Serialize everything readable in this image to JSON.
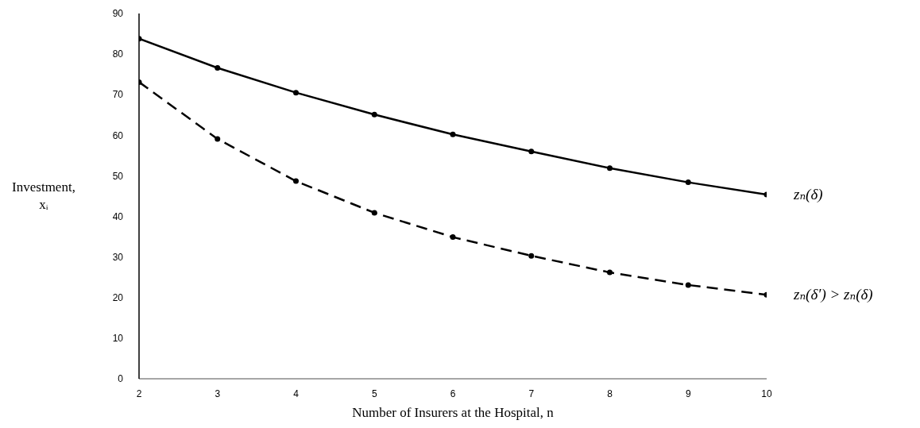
{
  "chart_data": {
    "type": "line",
    "xlabel": "Number of Insurers at the Hospital, n",
    "ylabel": "Investment, xᵢ",
    "x": [
      2,
      3,
      4,
      5,
      6,
      7,
      8,
      9,
      10
    ],
    "series": [
      {
        "name": "zₙ(δ)",
        "color": "#000000",
        "line_style": "solid",
        "values": [
          83.8,
          76.6,
          70.5,
          65.1,
          60.2,
          56.0,
          51.9,
          48.4,
          45.4
        ]
      },
      {
        "name": "zₙ(δ′) > zₙ(δ)",
        "color": "#000000",
        "line_style": "dashed",
        "values": [
          73.1,
          59.1,
          48.7,
          40.9,
          34.9,
          30.3,
          26.2,
          23.1,
          20.7
        ]
      }
    ],
    "xlim": [
      2,
      10
    ],
    "xticks": [
      2,
      3,
      4,
      5,
      6,
      7,
      8,
      9,
      10
    ],
    "ylim": [
      0,
      90
    ],
    "yticks": [
      0,
      10,
      20,
      30,
      40,
      50,
      60,
      70,
      80,
      90
    ],
    "grid": false,
    "legend": false,
    "marker": "circle"
  }
}
